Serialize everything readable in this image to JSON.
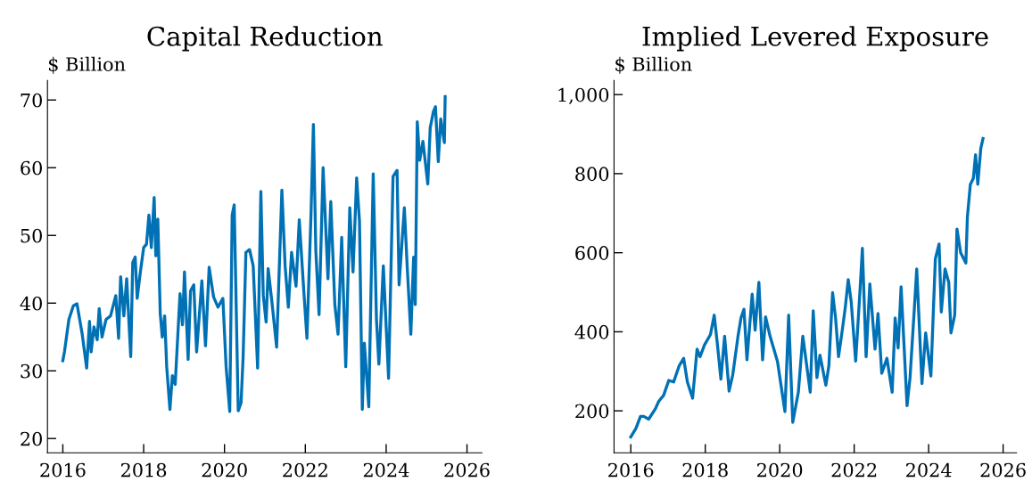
{
  "chart_data": [
    {
      "type": "line",
      "title": "Capital Reduction",
      "ylabel": "$ Billion",
      "xlim": [
        2015.62,
        2026.37
      ],
      "ylim": [
        17.9,
        72.9
      ],
      "xticks": [
        2016,
        2018,
        2020,
        2022,
        2024,
        2026
      ],
      "yticks": [
        20,
        30,
        40,
        50,
        60,
        70
      ],
      "grid": false,
      "legend": false,
      "x": [
        2016.0,
        2016.04,
        2016.15,
        2016.26,
        2016.35,
        2016.48,
        2016.59,
        2016.66,
        2016.7,
        2016.77,
        2016.85,
        2016.9,
        2016.97,
        2017.07,
        2017.18,
        2017.31,
        2017.38,
        2017.43,
        2017.51,
        2017.58,
        2017.68,
        2017.73,
        2017.79,
        2017.84,
        2017.91,
        2018.0,
        2018.07,
        2018.13,
        2018.19,
        2018.26,
        2018.3,
        2018.35,
        2018.41,
        2018.46,
        2018.52,
        2018.57,
        2018.65,
        2018.71,
        2018.78,
        2018.9,
        2018.96,
        2019.01,
        2019.1,
        2019.16,
        2019.24,
        2019.31,
        2019.44,
        2019.53,
        2019.62,
        2019.73,
        2019.84,
        2019.96,
        2020.04,
        2020.13,
        2020.19,
        2020.24,
        2020.34,
        2020.41,
        2020.46,
        2020.53,
        2020.62,
        2020.71,
        2020.82,
        2020.9,
        2020.96,
        2021.03,
        2021.08,
        2021.18,
        2021.29,
        2021.42,
        2021.5,
        2021.58,
        2021.66,
        2021.77,
        2021.85,
        2021.96,
        2022.04,
        2022.14,
        2022.2,
        2022.26,
        2022.34,
        2022.44,
        2022.56,
        2022.63,
        2022.73,
        2022.81,
        2022.9,
        2023.0,
        2023.1,
        2023.18,
        2023.27,
        2023.34,
        2023.41,
        2023.46,
        2023.57,
        2023.68,
        2023.76,
        2023.82,
        2023.93,
        2024.06,
        2024.17,
        2024.27,
        2024.32,
        2024.45,
        2024.52,
        2024.61,
        2024.68,
        2024.72,
        2024.77,
        2024.83,
        2024.91,
        2025.03,
        2025.09,
        2025.17,
        2025.22,
        2025.29,
        2025.35,
        2025.44,
        2025.46
      ],
      "series": [
        {
          "color": "#0071b5",
          "line_style": "solid",
          "values": [
            31.5,
            32.8,
            37.6,
            39.6,
            39.9,
            35.4,
            30.4,
            37.3,
            32.8,
            36.5,
            34.6,
            39.2,
            35,
            37.6,
            38.1,
            41.1,
            34.8,
            43.9,
            38.1,
            43.6,
            32.1,
            46,
            46.8,
            40.7,
            44.2,
            48.2,
            48.7,
            53,
            48.2,
            55.6,
            47,
            52.4,
            38.5,
            35,
            38.1,
            30.6,
            24.3,
            29.3,
            28,
            41.4,
            36.8,
            44.6,
            31.7,
            41.8,
            42.7,
            32.8,
            43.3,
            33.7,
            45.3,
            40.9,
            39.4,
            40.7,
            30.6,
            24,
            53,
            54.5,
            24.1,
            25.3,
            31.9,
            47.5,
            47.9,
            45.5,
            30.4,
            56.5,
            41.1,
            37.2,
            45.1,
            39.8,
            33.5,
            56.7,
            45.5,
            39.4,
            47.5,
            42.5,
            52.3,
            42,
            34.8,
            53,
            66.4,
            47.7,
            38.3,
            60,
            43.6,
            55,
            39.8,
            35.4,
            49.7,
            30.6,
            54.1,
            44.6,
            58.5,
            52.1,
            24.3,
            34.1,
            24.7,
            59.1,
            37.6,
            31,
            45.5,
            28.9,
            58.7,
            59.6,
            42.7,
            54.1,
            45.5,
            35.4,
            46.8,
            39.8,
            66.8,
            61.1,
            63.9,
            57.6,
            65.9,
            68.3,
            69,
            60.9,
            67.2,
            63.7,
            70.5
          ]
        }
      ]
    },
    {
      "type": "line",
      "title": "Implied Levered Exposure",
      "ylabel": "$ Billion",
      "xlim": [
        2015.55,
        2026.36
      ],
      "ylim": [
        94,
        1036
      ],
      "xticks": [
        2016,
        2018,
        2020,
        2022,
        2024,
        2026
      ],
      "yticks": [
        200,
        400,
        600,
        800,
        {
          "value": 1000,
          "label": "1,000"
        }
      ],
      "grid": false,
      "legend": false,
      "x": [
        2016.0,
        2016.14,
        2016.26,
        2016.35,
        2016.48,
        2016.66,
        2016.75,
        2016.88,
        2017.02,
        2017.15,
        2017.3,
        2017.42,
        2017.52,
        2017.66,
        2017.78,
        2017.86,
        2017.98,
        2018.14,
        2018.24,
        2018.32,
        2018.42,
        2018.52,
        2018.64,
        2018.74,
        2018.88,
        2018.96,
        2019.04,
        2019.12,
        2019.26,
        2019.34,
        2019.44,
        2019.54,
        2019.62,
        2019.74,
        2019.94,
        2020.14,
        2020.24,
        2020.35,
        2020.5,
        2020.62,
        2020.82,
        2020.9,
        2021.0,
        2021.08,
        2021.24,
        2021.32,
        2021.42,
        2021.5,
        2021.58,
        2021.68,
        2021.76,
        2021.84,
        2021.92,
        2022.04,
        2022.16,
        2022.22,
        2022.32,
        2022.42,
        2022.56,
        2022.64,
        2022.74,
        2022.88,
        2023.02,
        2023.1,
        2023.18,
        2023.26,
        2023.42,
        2023.5,
        2023.62,
        2023.68,
        2023.82,
        2023.92,
        2024.06,
        2024.18,
        2024.28,
        2024.34,
        2024.44,
        2024.54,
        2024.6,
        2024.7,
        2024.76,
        2024.86,
        2025.0,
        2025.04,
        2025.12,
        2025.2,
        2025.26,
        2025.32,
        2025.4,
        2025.46
      ],
      "series": [
        {
          "color": "#0071b5",
          "line_style": "solid",
          "values": [
            134,
            156,
            186,
            186,
            179,
            205,
            224,
            239,
            277,
            273,
            314,
            333,
            273,
            232,
            356,
            337,
            367,
            393,
            442,
            374,
            280,
            389,
            250,
            292,
            389,
            435,
            457,
            329,
            495,
            404,
            525,
            329,
            438,
            389,
            325,
            198,
            442,
            171,
            247,
            389,
            247,
            453,
            284,
            341,
            265,
            314,
            499,
            435,
            337,
            404,
            461,
            532,
            476,
            326,
            510,
            611,
            337,
            521,
            356,
            446,
            295,
            333,
            247,
            435,
            359,
            514,
            213,
            284,
            465,
            559,
            269,
            397,
            288,
            585,
            622,
            450,
            559,
            525,
            397,
            442,
            660,
            600,
            574,
            690,
            773,
            788,
            848,
            773,
            864,
            889
          ]
        }
      ]
    }
  ]
}
